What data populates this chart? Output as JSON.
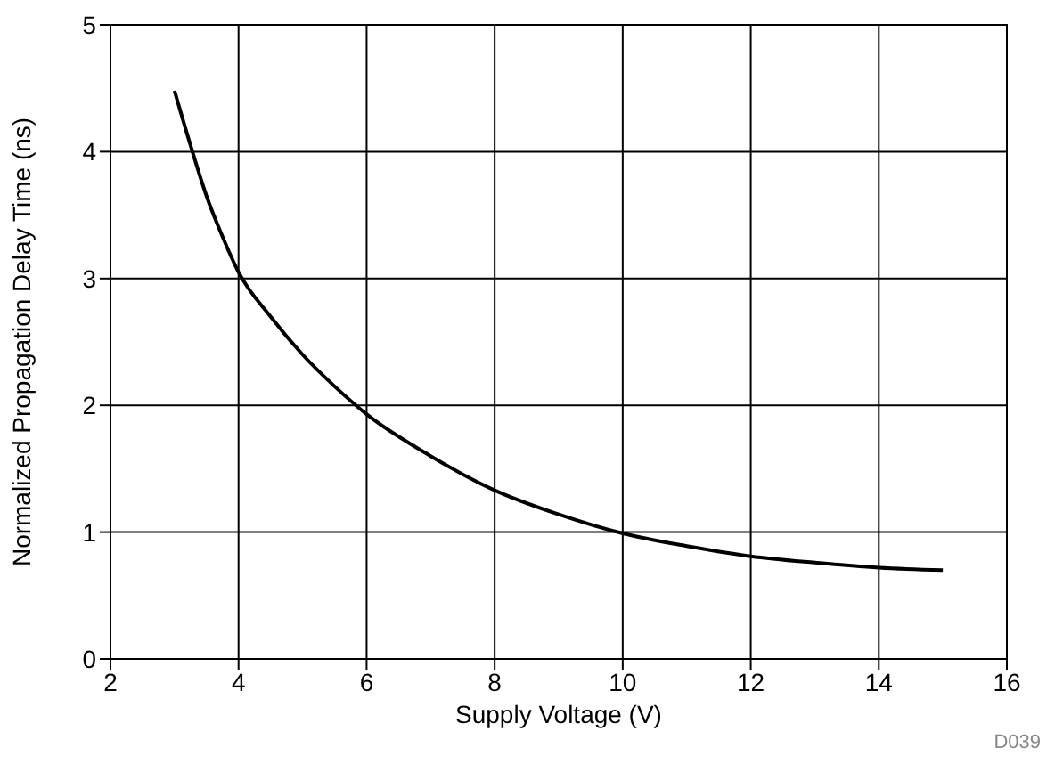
{
  "chart_data": {
    "type": "line",
    "xlabel": "Supply Voltage (V)",
    "ylabel": "Normalized Propagation Delay Time (ns)",
    "x": [
      3,
      3.25,
      3.5,
      3.75,
      4,
      4.5,
      5,
      5.5,
      6,
      7,
      8,
      9,
      10,
      11,
      12,
      13,
      14,
      15
    ],
    "series": [
      {
        "color": "#000000",
        "values": [
          4.48,
          4.05,
          3.65,
          3.33,
          3.05,
          2.7,
          2.4,
          2.15,
          1.93,
          1.6,
          1.33,
          1.14,
          0.99,
          0.89,
          0.81,
          0.76,
          0.72,
          0.7
        ]
      }
    ],
    "xlim": [
      2,
      16
    ],
    "xticks": [
      2,
      4,
      6,
      8,
      10,
      12,
      14,
      16
    ],
    "ylim": [
      0,
      5
    ],
    "yticks": [
      0,
      1,
      2,
      3,
      4,
      5
    ],
    "grid": true,
    "legend": false,
    "marker": "none",
    "line_style": "solid",
    "annotations": [
      "D039"
    ]
  }
}
